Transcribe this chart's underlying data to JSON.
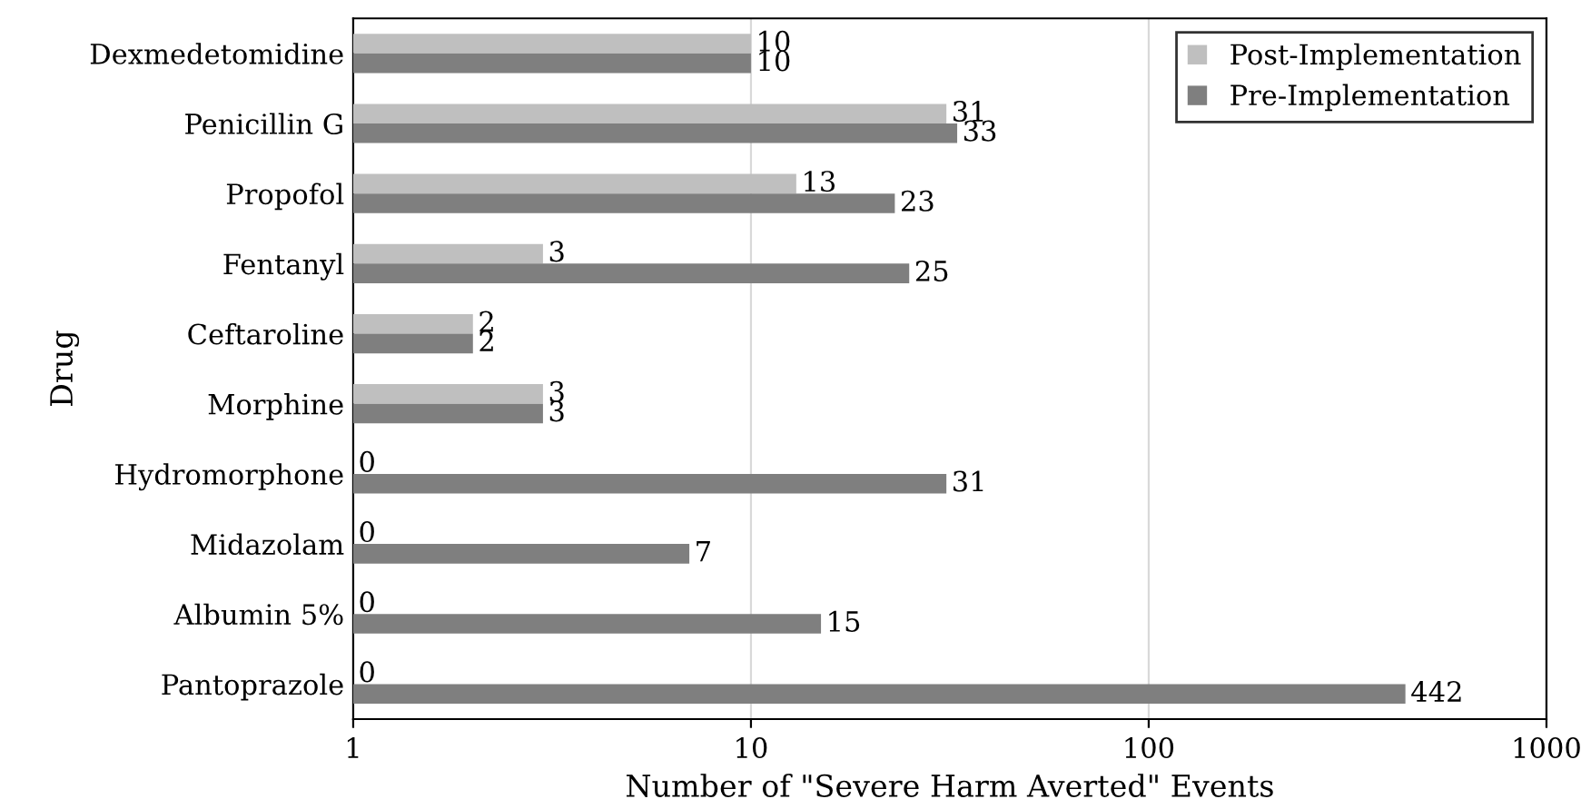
{
  "chart_data": {
    "type": "bar",
    "orientation": "horizontal",
    "xlabel": "Number of \"Severe Harm Averted\" Events",
    "ylabel": "Drug",
    "categories": [
      "Dexmedetomidine",
      "Penicillin G",
      "Propofol",
      "Fentanyl",
      "Ceftaroline",
      "Morphine",
      "Hydromorphone",
      "Midazolam",
      "Albumin 5%",
      "Pantoprazole"
    ],
    "series": [
      {
        "name": "Post-Implementation",
        "color": "#bfbfbf",
        "values": [
          10,
          31,
          13,
          3,
          2,
          3,
          null,
          null,
          null,
          null
        ],
        "value_labels": [
          "10",
          "31",
          "13",
          "3",
          "2",
          "3",
          "0",
          "0",
          "0",
          "0"
        ]
      },
      {
        "name": "Pre-Implementation",
        "color": "#7f7f7f",
        "values": [
          10,
          33,
          23,
          25,
          2,
          3,
          31,
          7,
          15,
          442
        ],
        "value_labels": [
          "10",
          "33",
          "23",
          "25",
          "2",
          "3",
          "31",
          "7",
          "15",
          "442"
        ]
      }
    ],
    "log": "x",
    "xlim": [
      1,
      1000
    ],
    "xticks": [
      1,
      10,
      100,
      1000
    ],
    "grid": "x",
    "legend": "top right"
  }
}
